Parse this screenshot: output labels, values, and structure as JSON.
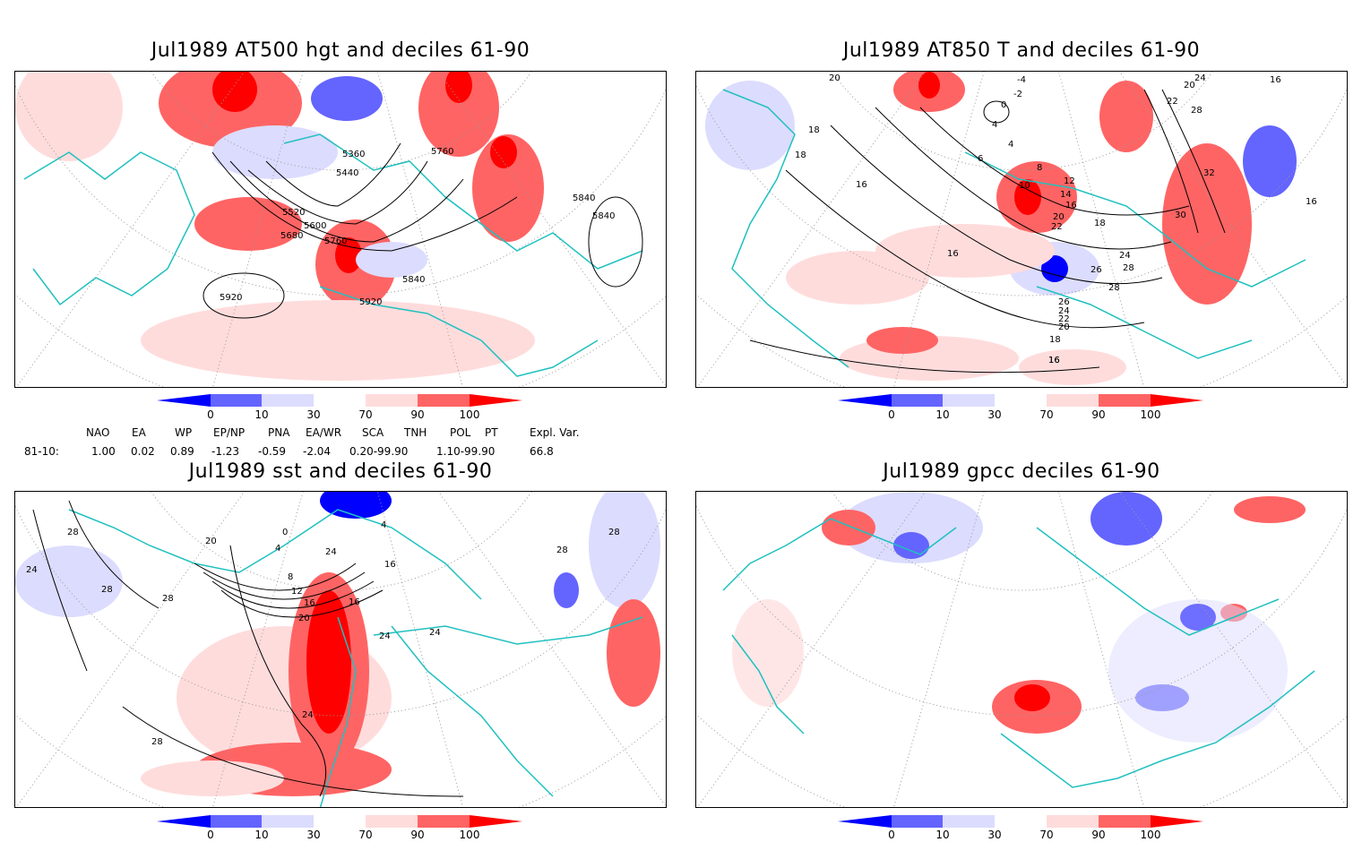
{
  "panels": [
    {
      "title": "Jul1989 AT500 hgt and deciles 61-90",
      "contour_labels": [
        "5360",
        "5440",
        "5520",
        "5600",
        "5680",
        "5760",
        "5760",
        "5840",
        "5840",
        "5840",
        "5920",
        "5920"
      ]
    },
    {
      "title": "Jul1989 AT850 T and deciles 61-90",
      "contour_labels": [
        "20",
        "18",
        "18",
        "16",
        "16",
        "16",
        "16",
        "4",
        "-2",
        "0",
        "-4",
        "4",
        "6",
        "8",
        "10",
        "12",
        "14",
        "16",
        "18",
        "20",
        "22",
        "24",
        "26",
        "28",
        "28",
        "26",
        "24",
        "22",
        "20",
        "18",
        "16",
        "24",
        "22",
        "20",
        "28",
        "32",
        "30",
        "16"
      ]
    },
    {
      "title": "Jul1989 sst and deciles 61-90",
      "contour_labels": [
        "28",
        "24",
        "28",
        "28",
        "20",
        "12",
        "16",
        "20",
        "8",
        "4",
        "0",
        "4",
        "24",
        "16",
        "16",
        "24",
        "24",
        "28",
        "28",
        "28",
        "24"
      ]
    },
    {
      "title": "Jul1989 gpcc deciles 61-90",
      "contour_labels": []
    }
  ],
  "colorbar": {
    "labels": [
      "0",
      "10",
      "30",
      "70",
      "90",
      "100"
    ],
    "colors": [
      "#0000ff",
      "#6464ff",
      "#dcdcff",
      "#ffffff",
      "#ffdcdc",
      "#ff6464",
      "#ff0000"
    ]
  },
  "indices": {
    "headers": [
      "NAO",
      "EA",
      "WP",
      "EP/NP",
      "PNA",
      "EA/WR",
      "SCA",
      "TNH",
      "POL",
      "PT",
      "Expl. Var."
    ],
    "row_label": "81-10:",
    "values": [
      "1.00",
      "0.02",
      "0.89",
      "-1.23",
      "-0.59",
      "-2.04",
      "0.20-99.90",
      "1.10-99.90",
      "66.8"
    ]
  },
  "colors": {
    "coast": "#20c0c0",
    "grid": "#999999",
    "contour": "#000000"
  }
}
